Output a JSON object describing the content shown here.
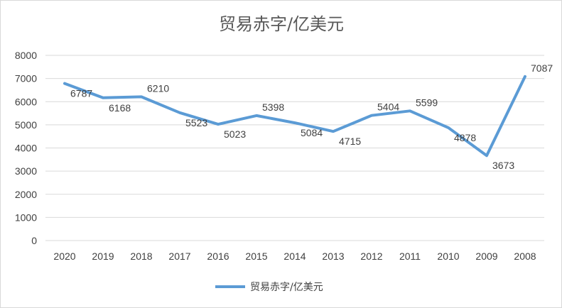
{
  "chart_data": {
    "type": "line",
    "title": "贸易赤字/亿美元",
    "categories": [
      "2020",
      "2019",
      "2018",
      "2017",
      "2016",
      "2015",
      "2014",
      "2013",
      "2012",
      "2011",
      "2010",
      "2009",
      "2008"
    ],
    "series": [
      {
        "name": "贸易赤字/亿美元",
        "values": [
          6787,
          6168,
          6210,
          5523,
          5023,
          5398,
          5084,
          4715,
          5404,
          5599,
          4878,
          3673,
          7087
        ],
        "color": "#5b9bd5"
      }
    ],
    "y_ticks": [
      "0",
      "1000",
      "2000",
      "3000",
      "4000",
      "5000",
      "6000",
      "7000",
      "8000"
    ],
    "ylim": [
      0,
      8000
    ],
    "grid": true,
    "legend_position": "bottom"
  }
}
